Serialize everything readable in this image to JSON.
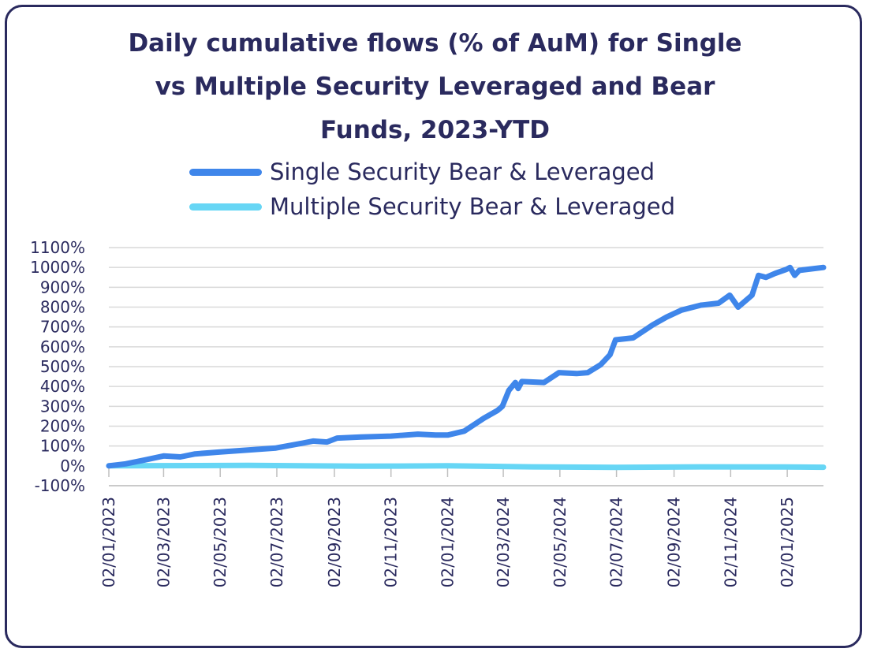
{
  "chart_data": {
    "type": "line",
    "title": "Daily cumulative flows (% of AuM) for Single vs Multiple Security Leveraged and Bear Funds, 2023-YTD",
    "title_lines": [
      "Daily cumulative flows (% of AuM) for Single",
      "vs Multiple Security Leveraged and Bear",
      "Funds, 2023-YTD"
    ],
    "xlabel": "",
    "ylabel": "",
    "ylim": [
      -100,
      1100
    ],
    "y_ticks": [
      "1100%",
      "1000%",
      "900%",
      "800%",
      "700%",
      "600%",
      "500%",
      "400%",
      "300%",
      "200%",
      "100%",
      "0%",
      "-100%"
    ],
    "x_ticks": [
      "02/01/2023",
      "02/03/2023",
      "02/05/2023",
      "02/07/2023",
      "02/09/2023",
      "02/11/2023",
      "02/01/2024",
      "02/03/2024",
      "02/05/2024",
      "02/07/2024",
      "02/09/2024",
      "02/11/2024",
      "02/01/2025"
    ],
    "grid": true,
    "legend_position": "top",
    "series": [
      {
        "name": "Single Security Bear & Leveraged",
        "color": "#3f86ea",
        "points": [
          [
            "2023-01-02",
            0
          ],
          [
            "2023-01-20",
            10
          ],
          [
            "2023-02-10",
            30
          ],
          [
            "2023-03-02",
            50
          ],
          [
            "2023-03-20",
            45
          ],
          [
            "2023-04-05",
            60
          ],
          [
            "2023-05-02",
            70
          ],
          [
            "2023-06-01",
            80
          ],
          [
            "2023-07-01",
            90
          ],
          [
            "2023-07-25",
            110
          ],
          [
            "2023-08-10",
            125
          ],
          [
            "2023-08-25",
            120
          ],
          [
            "2023-09-05",
            140
          ],
          [
            "2023-10-01",
            145
          ],
          [
            "2023-11-02",
            150
          ],
          [
            "2023-12-01",
            160
          ],
          [
            "2023-12-20",
            155
          ],
          [
            "2024-01-02",
            155
          ],
          [
            "2024-01-20",
            175
          ],
          [
            "2024-02-10",
            240
          ],
          [
            "2024-02-25",
            280
          ],
          [
            "2024-03-01",
            300
          ],
          [
            "2024-03-08",
            380
          ],
          [
            "2024-03-15",
            420
          ],
          [
            "2024-03-18",
            390
          ],
          [
            "2024-03-22",
            425
          ],
          [
            "2024-04-15",
            420
          ],
          [
            "2024-05-01",
            470
          ],
          [
            "2024-05-20",
            465
          ],
          [
            "2024-06-01",
            470
          ],
          [
            "2024-06-15",
            510
          ],
          [
            "2024-06-25",
            560
          ],
          [
            "2024-07-01",
            635
          ],
          [
            "2024-07-20",
            645
          ],
          [
            "2024-08-10",
            710
          ],
          [
            "2024-08-25",
            750
          ],
          [
            "2024-09-10",
            785
          ],
          [
            "2024-10-01",
            810
          ],
          [
            "2024-10-20",
            820
          ],
          [
            "2024-11-01",
            860
          ],
          [
            "2024-11-10",
            800
          ],
          [
            "2024-11-25",
            860
          ],
          [
            "2024-12-02",
            960
          ],
          [
            "2024-12-10",
            950
          ],
          [
            "2024-12-20",
            970
          ],
          [
            "2025-01-01",
            990
          ],
          [
            "2025-01-05",
            1000
          ],
          [
            "2025-01-10",
            960
          ],
          [
            "2025-01-15",
            985
          ],
          [
            "2025-02-10",
            1000
          ]
        ]
      },
      {
        "name": "Multiple Security Bear & Leveraged",
        "color": "#67d6f5",
        "points": [
          [
            "2023-01-02",
            0
          ],
          [
            "2023-06-01",
            2
          ],
          [
            "2023-10-01",
            -2
          ],
          [
            "2024-01-02",
            0
          ],
          [
            "2024-04-01",
            -5
          ],
          [
            "2024-07-01",
            -8
          ],
          [
            "2024-10-01",
            -5
          ],
          [
            "2025-01-01",
            -6
          ],
          [
            "2025-02-10",
            -7
          ]
        ]
      }
    ]
  }
}
